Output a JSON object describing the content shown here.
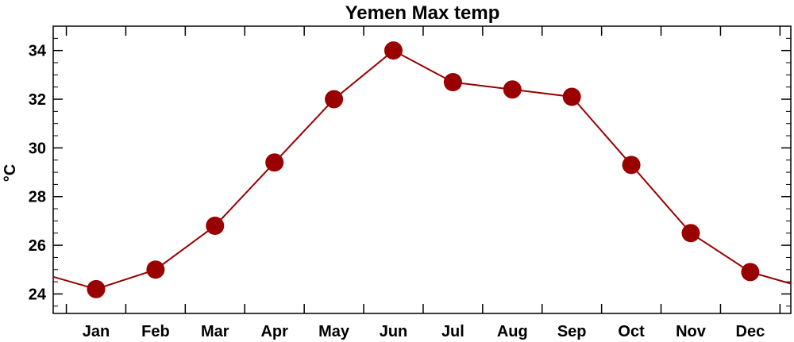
{
  "chart_data": {
    "type": "line",
    "title": "Yemen Max temp",
    "xlabel": "",
    "ylabel": "°C",
    "categories": [
      "Jan",
      "Feb",
      "Mar",
      "Apr",
      "May",
      "Jun",
      "Jul",
      "Aug",
      "Sep",
      "Oct",
      "Nov",
      "Dec"
    ],
    "series": [
      {
        "values": [
          24.2,
          25.0,
          26.8,
          29.4,
          32.0,
          34.0,
          32.7,
          32.4,
          32.1,
          29.3,
          26.5,
          24.9
        ]
      }
    ],
    "ylim": [
      23.2,
      35.0
    ],
    "yticks": [
      24,
      26,
      28,
      30,
      32,
      34
    ],
    "ytick_labels": [
      "24",
      "26",
      "28",
      "30",
      "32",
      "34"
    ],
    "grid": false,
    "legend": "none",
    "colors": {
      "line": "#990000",
      "marker": "#990000",
      "axis": "#000000"
    }
  }
}
